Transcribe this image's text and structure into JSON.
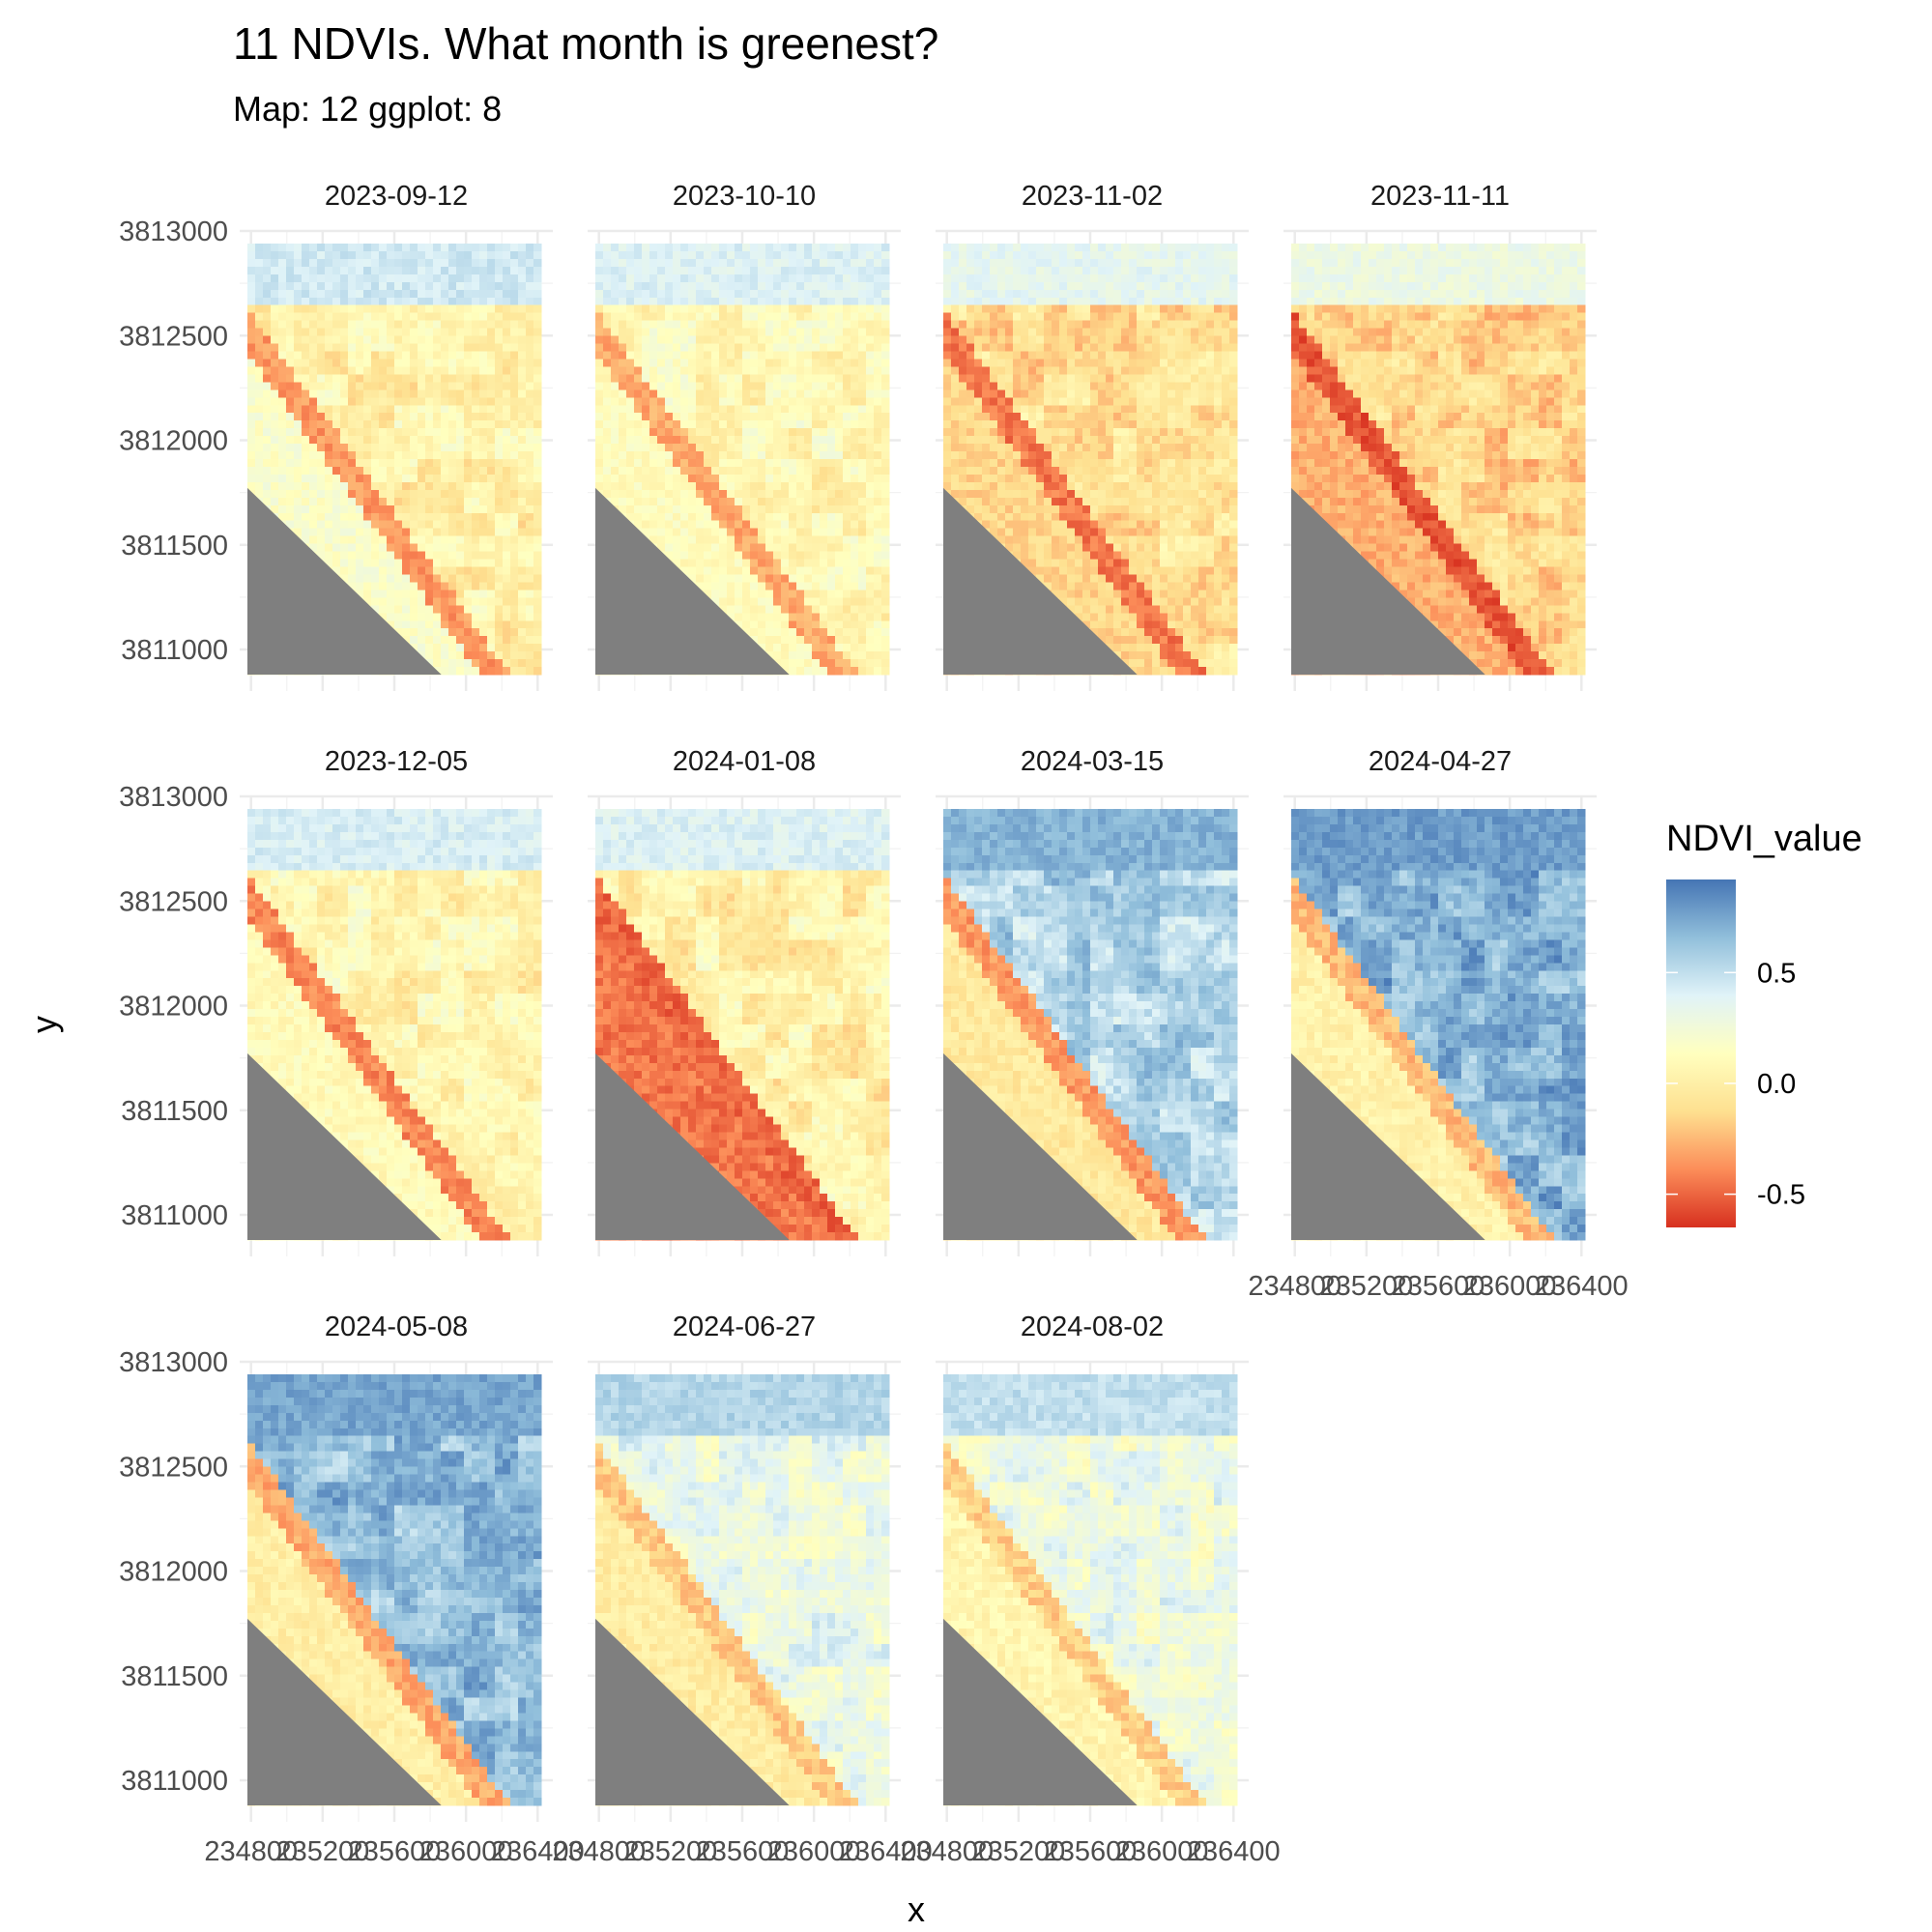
{
  "title": "11 NDVIs. What month is greenest?",
  "subtitle": "Map: 12  ggplot: 8",
  "chart_data": {
    "type": "heatmap",
    "title": "11 NDVIs. What month is greenest?",
    "subtitle": "Map: 12  ggplot: 8",
    "xlabel": "x",
    "ylabel": "y",
    "facets": [
      {
        "label": "2023-09-12",
        "mean_ndvi": 0.15
      },
      {
        "label": "2023-10-10",
        "mean_ndvi": 0.1
      },
      {
        "label": "2023-11-02",
        "mean_ndvi": 0.02
      },
      {
        "label": "2023-11-11",
        "mean_ndvi": -0.02
      },
      {
        "label": "2023-12-05",
        "mean_ndvi": 0.12
      },
      {
        "label": "2024-01-08",
        "mean_ndvi": 0.05
      },
      {
        "label": "2024-03-15",
        "mean_ndvi": 0.35
      },
      {
        "label": "2024-04-27",
        "mean_ndvi": 0.42
      },
      {
        "label": "2024-05-08",
        "mean_ndvi": 0.38
      },
      {
        "label": "2024-06-27",
        "mean_ndvi": 0.2
      },
      {
        "label": "2024-08-02",
        "mean_ndvi": 0.18
      }
    ],
    "x_ticks": [
      "234800",
      "235200",
      "235600",
      "236000",
      "236400"
    ],
    "y_ticks": [
      "3811000",
      "3811500",
      "3812000",
      "3812500",
      "3813000"
    ],
    "xlim": [
      234780,
      236420
    ],
    "ylim": [
      3810880,
      3812940
    ],
    "grid": true,
    "legend": {
      "title": "NDVI_value",
      "labels": [
        "0.5",
        "0.0",
        "-0.5"
      ],
      "label_values": [
        0.5,
        0.0,
        -0.5
      ],
      "range": [
        -0.65,
        0.92
      ],
      "position": "right",
      "colors": [
        "#d7301f",
        "#fc8d59",
        "#fee090",
        "#ffffbf",
        "#e0f3f8",
        "#91bfdb",
        "#4575b4"
      ]
    },
    "na_color": "#7f7f7f"
  }
}
